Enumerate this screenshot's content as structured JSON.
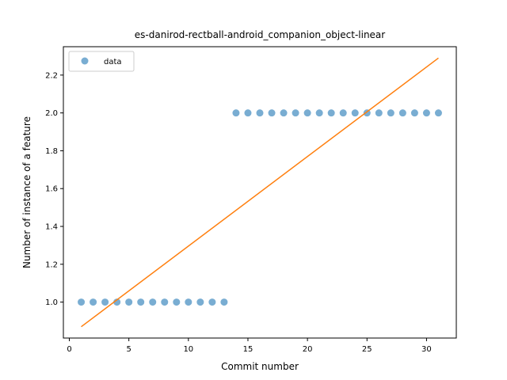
{
  "chart_data": {
    "type": "scatter",
    "title": "es-danirod-rectball-android_companion_object-linear",
    "xlabel": "Commit number",
    "ylabel": "Number of instance of a feature",
    "xlim": [
      -0.5,
      32.5
    ],
    "ylim": [
      0.81,
      2.35
    ],
    "xticks": [
      0,
      5,
      10,
      15,
      20,
      25,
      30
    ],
    "xtick_labels": [
      "0",
      "5",
      "10",
      "15",
      "20",
      "25",
      "30"
    ],
    "yticks": [
      1.0,
      1.2,
      1.4,
      1.6,
      1.8,
      2.0,
      2.2
    ],
    "ytick_labels": [
      "1.0",
      "1.2",
      "1.4",
      "1.6",
      "1.8",
      "2.0",
      "2.2"
    ],
    "grid": false,
    "legend": {
      "position": "top-left",
      "entries": [
        "data"
      ]
    },
    "series": [
      {
        "name": "data",
        "kind": "scatter",
        "color": "#1f77b4",
        "x": [
          1,
          2,
          3,
          4,
          5,
          6,
          7,
          8,
          9,
          10,
          11,
          12,
          13,
          14,
          15,
          16,
          17,
          18,
          19,
          20,
          21,
          22,
          23,
          24,
          25,
          26,
          27,
          28,
          29,
          30,
          31
        ],
        "y": [
          1,
          1,
          1,
          1,
          1,
          1,
          1,
          1,
          1,
          1,
          1,
          1,
          1,
          2,
          2,
          2,
          2,
          2,
          2,
          2,
          2,
          2,
          2,
          2,
          2,
          2,
          2,
          2,
          2,
          2,
          2
        ]
      },
      {
        "kind": "line",
        "color": "#ff7f0e",
        "x": [
          1,
          31
        ],
        "y": [
          0.87,
          2.29
        ]
      }
    ]
  }
}
